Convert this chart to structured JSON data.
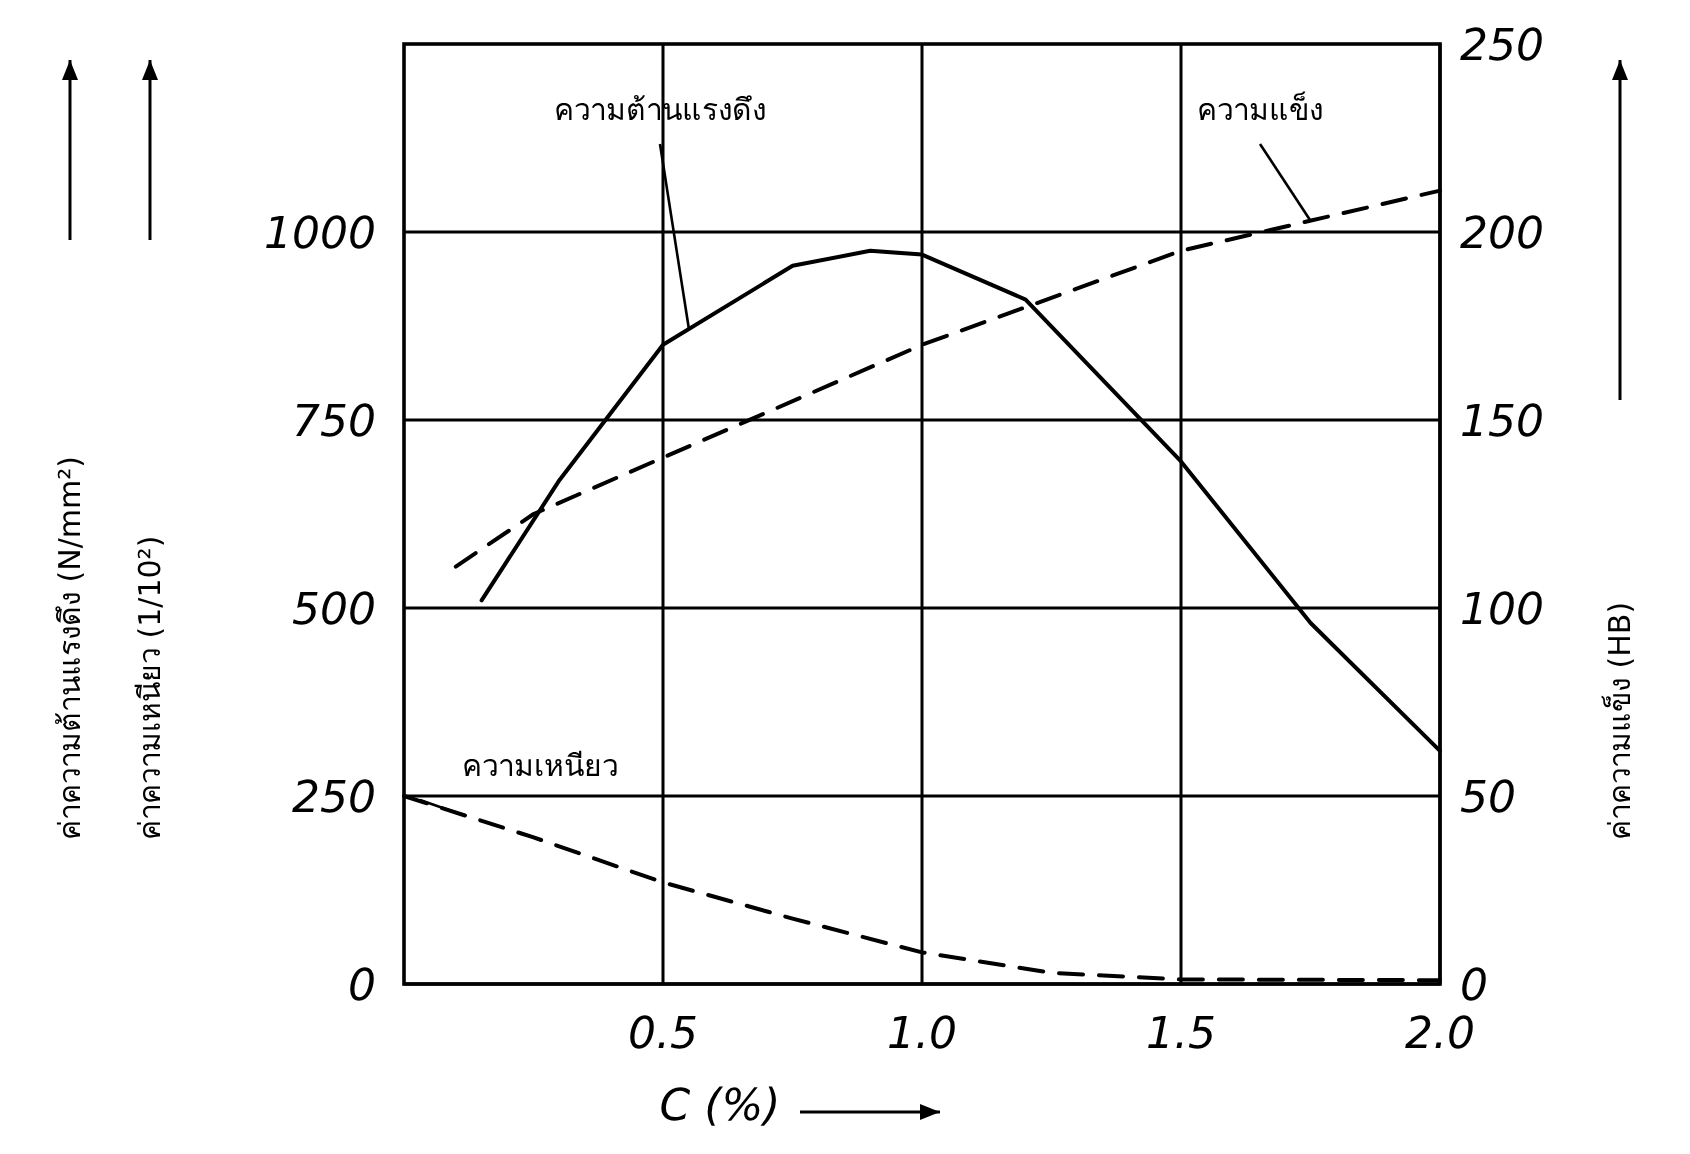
{
  "chart_data": {
    "type": "line",
    "xlabel": "C (%)",
    "ylabel": [
      "ค่าความต้านแรงดึง (N/mm²)",
      "ค่าความเหนียว (1/10²)"
    ],
    "y2label": "ค่าความแข็ง (HB)",
    "xlim": [
      0,
      2
    ],
    "xticks": [
      {
        "value": 0.5,
        "label": "0.5"
      },
      {
        "value": 1,
        "label": "1.0"
      },
      {
        "value": 1.5,
        "label": "1.5"
      },
      {
        "value": 2,
        "label": "2.0"
      }
    ],
    "ylim": [
      0,
      1250
    ],
    "yticks": [
      0,
      250,
      500,
      750,
      1000
    ],
    "y2lim": [
      0,
      250
    ],
    "y2ticks": [
      0,
      50,
      100,
      150,
      200,
      250
    ],
    "grid": true,
    "series": [
      {
        "name": "ความต้านแรงดึง",
        "color": "#000000",
        "line_style": "solid",
        "x": [
          0.15,
          0.3,
          0.5,
          0.75,
          0.9,
          1.0,
          1.2,
          1.5,
          1.75,
          2.0
        ],
        "values": [
          510,
          670,
          850,
          955,
          975,
          970,
          910,
          695,
          480,
          310
        ]
      },
      {
        "name": "ความแข็ง",
        "color": "#000000",
        "line_style": "dashed",
        "axis": "y2",
        "x": [
          0.1,
          0.25,
          0.5,
          1.0,
          1.5,
          2.0
        ],
        "values": [
          111,
          125,
          140,
          170,
          195,
          211
        ]
      },
      {
        "name": "ความเหนียว",
        "color": "#000000",
        "line_style": "dashed",
        "x": [
          0,
          0.25,
          0.5,
          0.75,
          1.0,
          1.25,
          1.5,
          2.0
        ],
        "values": [
          250,
          195,
          135,
          87,
          42,
          15,
          6,
          5
        ]
      }
    ]
  }
}
